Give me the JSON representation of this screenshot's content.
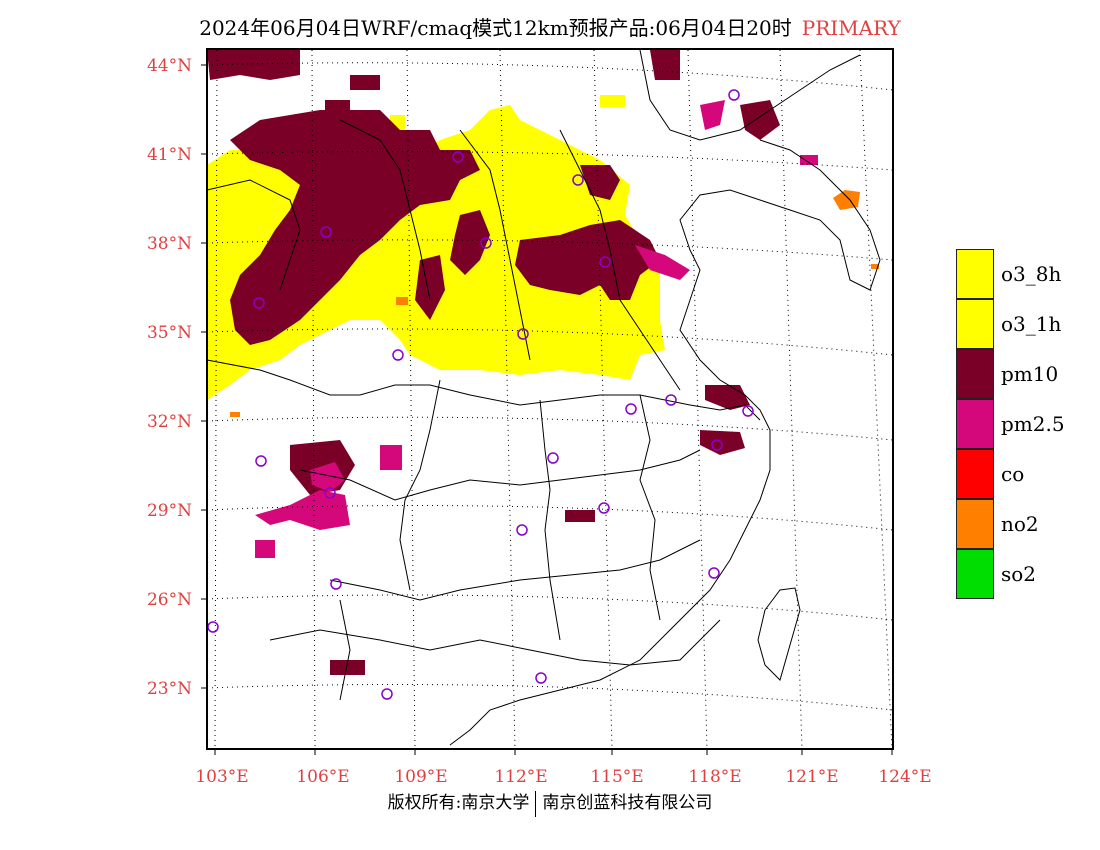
{
  "title": {
    "main": "2024年06月04日WRF/cmaq模式12km预报产品:06月04日20时",
    "status": "PRIMARY"
  },
  "lat_labels": [
    "44°N",
    "41°N",
    "38°N",
    "35°N",
    "32°N",
    "29°N",
    "26°N",
    "23°N"
  ],
  "lon_labels": [
    "103°E",
    "106°E",
    "109°E",
    "112°E",
    "115°E",
    "118°E",
    "121°E",
    "124°E"
  ],
  "legend": [
    {
      "label": "o3_8h",
      "color": "#ffff00"
    },
    {
      "label": "o3_1h",
      "color": "#ffff00"
    },
    {
      "label": "pm10",
      "color": "#7a0028"
    },
    {
      "label": "pm2.5",
      "color": "#d4087a"
    },
    {
      "label": "co",
      "color": "#ff0000"
    },
    {
      "label": "no2",
      "color": "#ff7f00"
    },
    {
      "label": "so2",
      "color": "#00dd00"
    }
  ],
  "copyright": {
    "left": "版权所有:南京大学",
    "right": "南京创蓝科技有限公司"
  },
  "colors": {
    "accent": "#e04040",
    "station": "#8800cc"
  }
}
